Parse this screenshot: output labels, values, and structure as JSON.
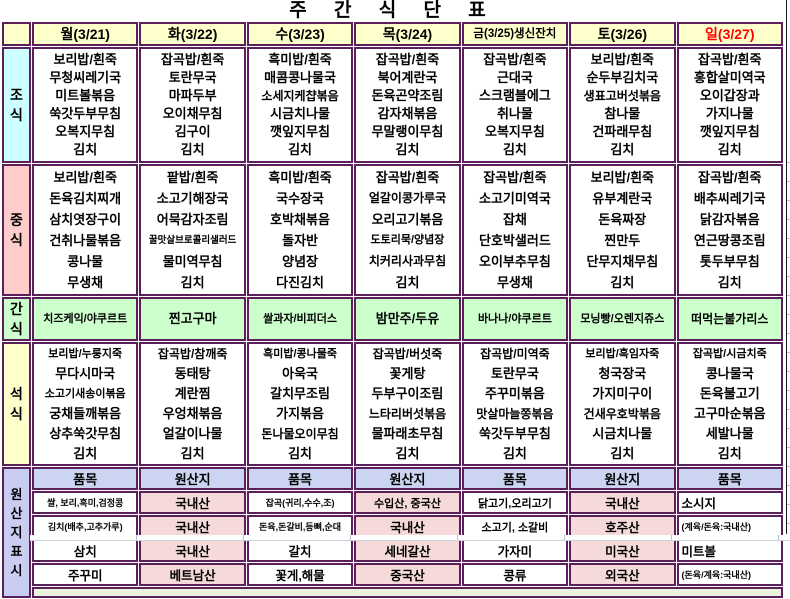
{
  "title": "주 간 식 단 표",
  "colors": {
    "border_purple": "#5B1F5B",
    "header_yellow": "#FFFFCC",
    "breakfast_cyan": "#CCFFFF",
    "lunch_pink": "#FFCCCC",
    "snack_green": "#CCFFCC",
    "dinner_yellow": "#FFFFCC",
    "origin_blue": "#CBD4F0",
    "origin_pink": "#F6DADA",
    "sunday_red": "#FF0000",
    "bottom_green": "#EBF3DE"
  },
  "days": [
    {
      "label": "월(3/21)",
      "color": "#000000"
    },
    {
      "label": "화(3/22)",
      "color": "#000000"
    },
    {
      "label": "수(3/23)",
      "color": "#000000"
    },
    {
      "label": "목(3/24)",
      "color": "#000000"
    },
    {
      "label": "금(3/25)생신잔치",
      "color": "#000000"
    },
    {
      "label": "토(3/26)",
      "color": "#000000"
    },
    {
      "label": "일(3/27)",
      "color": "#FF0000"
    }
  ],
  "meals": [
    {
      "name": "조식",
      "columns": [
        [
          "보리밥/흰죽",
          "무청씨레기국",
          "미트볼볶음",
          "쑥갓두부무침",
          "오복지무침",
          "김치"
        ],
        [
          "잡곡밥/흰죽",
          "토란무국",
          "마파두부",
          "오이채무침",
          "김구이",
          "김치"
        ],
        [
          "흑미밥/흰죽",
          "매콤콩나물국",
          "소세지케챱볶음",
          "시금치나물",
          "깻잎지무침",
          "김치"
        ],
        [
          "잡곡밥/흰죽",
          "북어계란국",
          "돈육곤약조림",
          "감자채볶음",
          "무말랭이무침",
          "김치"
        ],
        [
          "잡곡밥/흰죽",
          "근대국",
          "스크램블에그",
          "취나물",
          "오복지무침",
          "김치"
        ],
        [
          "보리밥/흰죽",
          "순두부김치국",
          "생표고버섯볶음",
          "참나물",
          "건파래무침",
          "김치"
        ],
        [
          "잡곡밥/흰죽",
          "홍합살미역국",
          "오이갑장과",
          "가지나물",
          "깻잎지무침",
          "김치"
        ]
      ]
    },
    {
      "name": "중식",
      "columns": [
        [
          "보리밥/흰죽",
          "돈육김치찌개",
          "삼치엿장구이",
          "건취나물볶음",
          "콩나물",
          "무생채"
        ],
        [
          "팥밥/흰죽",
          "소고기해장국",
          "어묵감자조림",
          "꿀맛살브로콜리샐러드",
          "물미역무침",
          "김치"
        ],
        [
          "흑미밥/흰죽",
          "국수장국",
          "호박채볶음",
          "돌자반",
          "양념장",
          "다진김치"
        ],
        [
          "잡곡밥/흰죽",
          "얼갈이콩가루국",
          "오리고기볶음",
          "도토리묵/양념장",
          "치커리사과무침",
          "김치"
        ],
        [
          "잡곡밥/흰죽",
          "소고기미역국",
          "잡채",
          "단호박샐러드",
          "오이부추무침",
          "무생채"
        ],
        [
          "보리밥/흰죽",
          "유부계란국",
          "돈육짜장",
          "찐만두",
          "단무지채무침",
          "김치"
        ],
        [
          "잡곡밥/흰죽",
          "배추씨레기국",
          "닭감자볶음",
          "연근땅콩조림",
          "톳두부무침",
          "김치"
        ]
      ]
    },
    {
      "name": "간식",
      "columns": [
        [
          "치즈케익/야쿠르트"
        ],
        [
          "찐고구마"
        ],
        [
          "쌀과자/비피더스"
        ],
        [
          "밤만주/두유"
        ],
        [
          "바나나/야쿠르트"
        ],
        [
          "모닝빵/오렌지쥬스"
        ],
        [
          "떠먹는불가리스"
        ]
      ]
    },
    {
      "name": "석식",
      "columns": [
        [
          "보리밥/누룽지죽",
          "무다시마국",
          "소고기새송이볶음",
          "궁채들깨볶음",
          "상추쑥갓무침",
          "김치"
        ],
        [
          "잡곡밥/참깨죽",
          "동태탕",
          "계란찜",
          "우엉채볶음",
          "얼갈이나물",
          "김치"
        ],
        [
          "흑미밥/콩나물죽",
          "아욱국",
          "갈치무조림",
          "가지볶음",
          "돈나물오이무침",
          "김치"
        ],
        [
          "잡곡밥/버섯죽",
          "꽃게탕",
          "두부구이조림",
          "느타리버섯볶음",
          "물파래초무침",
          "김치"
        ],
        [
          "잡곡밥/미역죽",
          "토란무국",
          "주꾸미볶음",
          "맛살마늘쫑볶음",
          "쑥갓두부무침",
          "김치"
        ],
        [
          "보리밥/흑임자죽",
          "청국장국",
          "가지미구이",
          "건새우호박볶음",
          "시금치나물",
          "김치"
        ],
        [
          "잡곡밥/시금치죽",
          "콩나물국",
          "돈육불고기",
          "고구마순볶음",
          "세발나물",
          "김치"
        ]
      ]
    }
  ],
  "origin": {
    "label": "원산지표시",
    "headers": [
      "품목",
      "원산지",
      "품목",
      "원산지",
      "품목",
      "원산지",
      "품목"
    ],
    "rows": [
      [
        "쌀, 보리,흑미,검정콩",
        "국내산",
        "잡곡(귀리,수수,조)",
        "수입산, 중국산",
        "닭고기,오리고기",
        "국내산",
        "소시지"
      ],
      [
        "김치(배추,고추가루)",
        "국내산",
        "돈육,돈갈비,등뼈,순대",
        "국내산",
        "소고기, 소갈비",
        "호주산",
        "(계육/돈육:국내산)"
      ],
      [
        "삼치",
        "국내산",
        "갈치",
        "세네갈산",
        "가자미",
        "미국산",
        "미트볼"
      ],
      [
        "주꾸미",
        "베트남산",
        "꽃게,해물",
        "중국산",
        "콩류",
        "외국산",
        "(돈육/계육:국내산)"
      ]
    ]
  }
}
